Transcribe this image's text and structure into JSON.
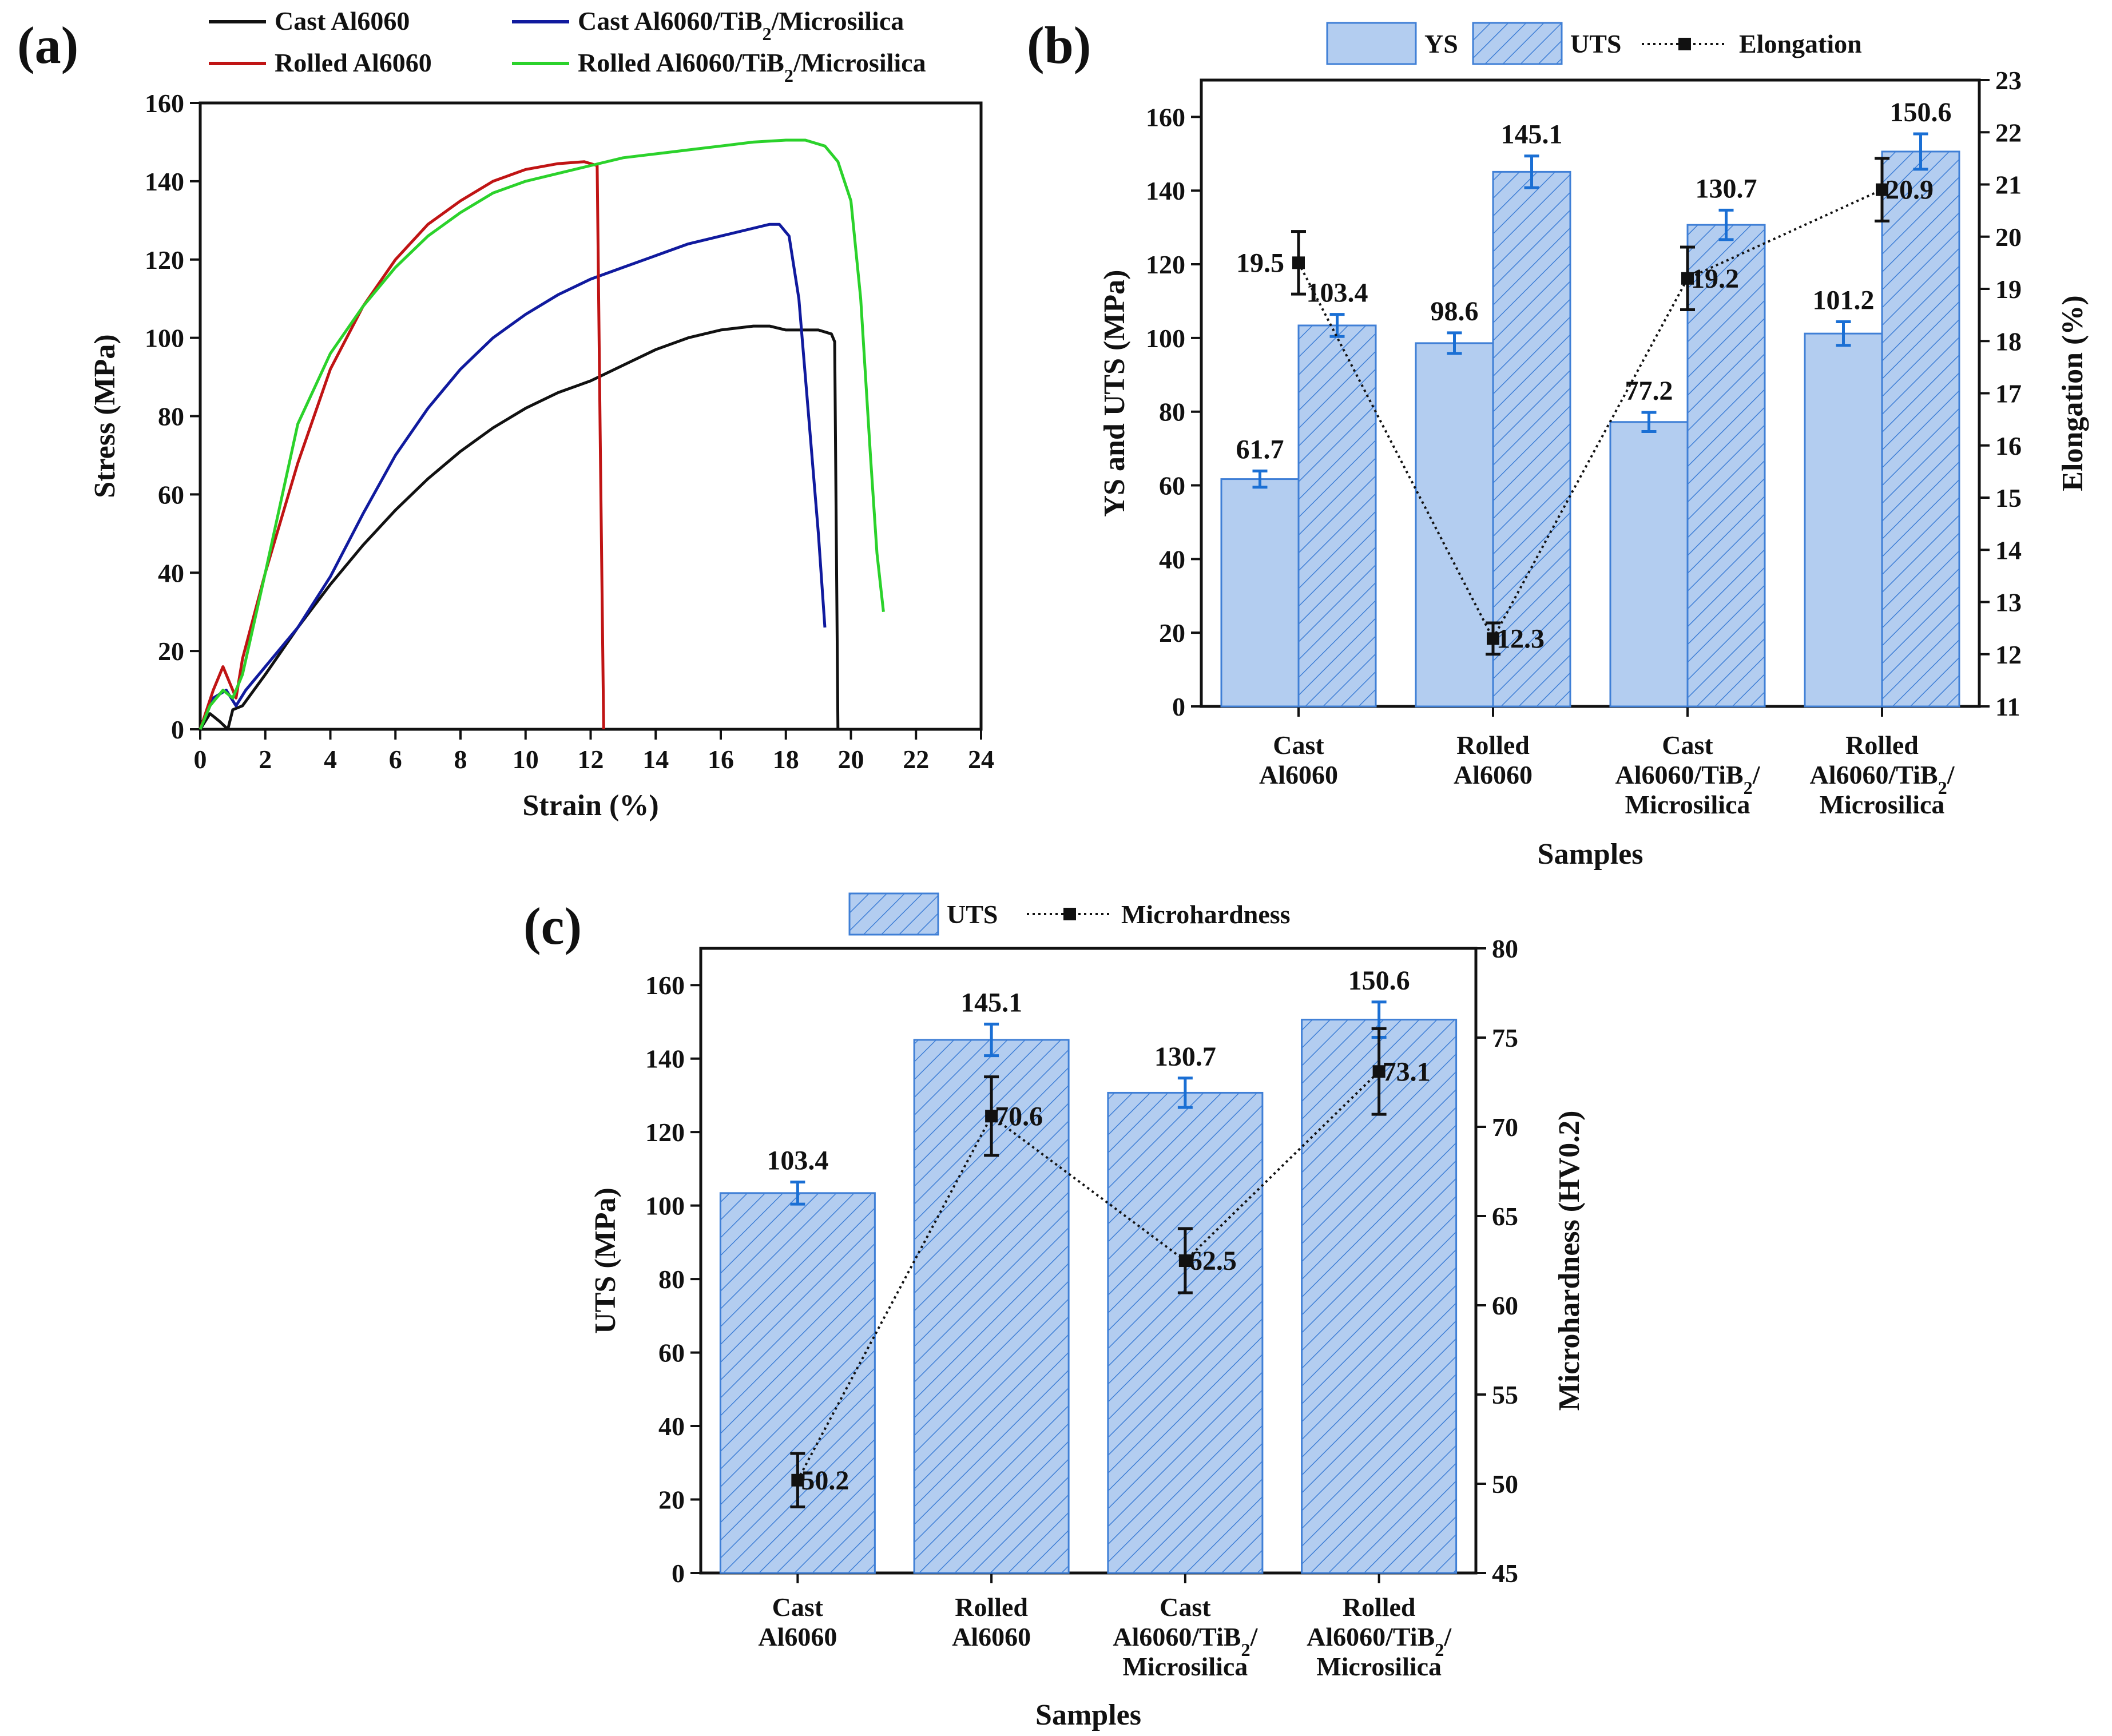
{
  "panel_labels": {
    "a": "(a)",
    "b": "(b)",
    "c": "(c)"
  },
  "colors": {
    "cast": "#111111",
    "rolled": "#c01414",
    "cast_comp": "#101a9e",
    "rolled_comp": "#2bd22b",
    "bar_fill": "#b3cdf0",
    "bar_edge": "#3f7fd6"
  },
  "chart_data": [
    {
      "id": "a",
      "type": "line",
      "title": "",
      "xlabel": "Strain (%)",
      "ylabel": "Stress (MPa)",
      "xlim": [
        0,
        24
      ],
      "ylim": [
        0,
        160
      ],
      "xticks": [
        0,
        2,
        4,
        6,
        8,
        10,
        12,
        14,
        16,
        18,
        20,
        22,
        24
      ],
      "yticks": [
        0,
        20,
        40,
        60,
        80,
        100,
        120,
        140,
        160
      ],
      "legend": [
        "Cast Al6060",
        "Cast Al6060/TiB₂/Microsilica",
        "Rolled Al6060",
        "Rolled Al6060/TiB₂/Microsilica"
      ],
      "series": [
        {
          "name": "Cast Al6060",
          "x": [
            0,
            0.3,
            0.6,
            0.85,
            1.0,
            1.3,
            2,
            3,
            4,
            5,
            6,
            7,
            8,
            9,
            10,
            11,
            12,
            13,
            14,
            15,
            16,
            17,
            17.5,
            18,
            18.5,
            19,
            19.4,
            19.5,
            19.55,
            19.6
          ],
          "y": [
            0,
            4,
            2,
            0,
            5,
            6,
            14,
            26,
            37,
            47,
            56,
            64,
            71,
            77,
            82,
            86,
            89,
            93,
            97,
            100,
            102,
            103,
            103,
            102,
            102,
            102,
            101,
            99,
            50,
            0
          ]
        },
        {
          "name": "Cast Al6060/TiB₂/Microsilica",
          "x": [
            0,
            0.4,
            0.8,
            1.1,
            1.4,
            2,
            3,
            4,
            5,
            6,
            7,
            8,
            9,
            10,
            11,
            12,
            13,
            14,
            15,
            16,
            17,
            17.5,
            17.8,
            18.1,
            18.4,
            18.7,
            19.0,
            19.2
          ],
          "y": [
            0,
            8,
            10,
            6,
            10,
            16,
            26,
            39,
            55,
            70,
            82,
            92,
            100,
            106,
            111,
            115,
            118,
            121,
            124,
            126,
            128,
            129,
            129,
            126,
            110,
            80,
            50,
            26
          ]
        },
        {
          "name": "Rolled Al6060",
          "x": [
            0,
            0.4,
            0.7,
            0.9,
            1.1,
            1.3,
            2,
            3,
            4,
            5,
            6,
            7,
            8,
            9,
            10,
            11,
            11.8,
            12.2,
            12.3,
            12.4
          ],
          "y": [
            0,
            10,
            16,
            12,
            8,
            18,
            40,
            68,
            92,
            108,
            120,
            129,
            135,
            140,
            143,
            144.5,
            145,
            144,
            70,
            0
          ]
        },
        {
          "name": "Rolled Al6060/TiB₂/Microsilica",
          "x": [
            0,
            0.3,
            0.7,
            1.0,
            1.3,
            2,
            3,
            4,
            5,
            6,
            7,
            8,
            9,
            10,
            11,
            12,
            13,
            14,
            15,
            16,
            17,
            18,
            18.6,
            19.2,
            19.6,
            20.0,
            20.3,
            20.6,
            20.8,
            21.0
          ],
          "y": [
            0,
            6,
            10,
            8,
            14,
            40,
            78,
            96,
            108,
            118,
            126,
            132,
            137,
            140,
            142,
            144,
            146,
            147,
            148,
            149,
            150,
            150.5,
            150.5,
            149,
            145,
            135,
            110,
            70,
            45,
            30
          ]
        }
      ]
    },
    {
      "id": "b",
      "type": "bar",
      "title": "",
      "xlabel": "Samples",
      "ylabel": "YS and UTS (MPa)",
      "y2label": "Elongation (%)",
      "ylim": [
        0,
        170
      ],
      "y2lim": [
        11,
        23
      ],
      "yticks": [
        0,
        20,
        40,
        60,
        80,
        100,
        120,
        140,
        160
      ],
      "y2ticks": [
        11,
        12,
        13,
        14,
        15,
        16,
        17,
        18,
        19,
        20,
        21,
        22,
        23
      ],
      "legend": [
        "YS",
        "UTS",
        "Elongation"
      ],
      "categories": [
        [
          "Cast",
          "Al6060"
        ],
        [
          "Rolled",
          "Al6060"
        ],
        [
          "Cast",
          "Al6060/TiB₂/",
          "Microsilica"
        ],
        [
          "Rolled",
          "Al6060/TiB₂/",
          "Microsilica"
        ]
      ],
      "series": [
        {
          "name": "YS",
          "values": [
            61.7,
            98.6,
            77.2,
            101.2
          ],
          "errors": [
            2.2,
            2.8,
            2.6,
            3.2
          ],
          "labels": [
            "61.7",
            "98.6",
            "77.2",
            "101.2"
          ]
        },
        {
          "name": "UTS",
          "values": [
            103.4,
            145.1,
            130.7,
            150.6
          ],
          "errors": [
            3.0,
            4.3,
            4.0,
            4.8
          ],
          "labels": [
            "103.4",
            "145.1",
            "130.7",
            "150.6"
          ]
        },
        {
          "name": "Elongation",
          "values": [
            19.5,
            12.3,
            19.2,
            20.9
          ],
          "errors": [
            0.6,
            0.3,
            0.6,
            0.6
          ],
          "labels": [
            "19.5",
            "12.3",
            "19.2",
            "20.9"
          ]
        }
      ]
    },
    {
      "id": "c",
      "type": "bar",
      "title": "",
      "xlabel": "Samples",
      "ylabel": "UTS (MPa)",
      "y2label": "Microhardness (HV0.2)",
      "ylim": [
        0,
        170
      ],
      "y2lim": [
        45,
        80
      ],
      "yticks": [
        0,
        20,
        40,
        60,
        80,
        100,
        120,
        140,
        160
      ],
      "y2ticks": [
        45,
        50,
        55,
        60,
        65,
        70,
        75,
        80
      ],
      "legend": [
        "UTS",
        "Microhardness"
      ],
      "categories": [
        [
          "Cast",
          "Al6060"
        ],
        [
          "Rolled",
          "Al6060"
        ],
        [
          "Cast",
          "Al6060/TiB₂/",
          "Microsilica"
        ],
        [
          "Rolled",
          "Al6060/TiB₂/",
          "Microsilica"
        ]
      ],
      "series": [
        {
          "name": "UTS",
          "values": [
            103.4,
            145.1,
            130.7,
            150.6
          ],
          "errors": [
            3.0,
            4.3,
            4.0,
            4.8
          ],
          "labels": [
            "103.4",
            "145.1",
            "130.7",
            "150.6"
          ]
        },
        {
          "name": "Microhardness",
          "values": [
            50.2,
            70.6,
            62.5,
            73.1
          ],
          "errors": [
            1.5,
            2.2,
            1.8,
            2.4
          ],
          "labels": [
            "50.2",
            "70.6",
            "62.5",
            "73.1"
          ]
        }
      ]
    }
  ]
}
